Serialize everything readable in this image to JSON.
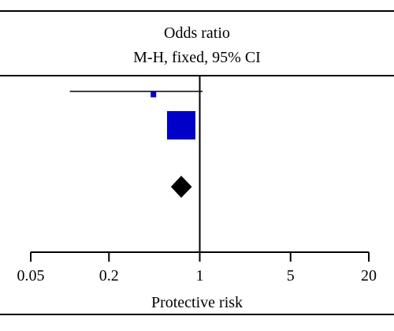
{
  "chart_data": {
    "type": "forest",
    "header": {
      "line1": "Odds ratio",
      "line2": "M-H, fixed, 95% CI"
    },
    "xlabel": "Protective risk",
    "x_scale": "log",
    "xlim": [
      0.05,
      20
    ],
    "x_ticks": [
      0.05,
      0.2,
      1,
      5,
      20
    ],
    "x_tick_labels": [
      "0.05",
      "0.2",
      "1",
      "5",
      "20"
    ],
    "reference_line": 1,
    "studies": [
      {
        "or": 0.44,
        "ci": [
          0.1,
          1.05
        ],
        "weight": "small"
      },
      {
        "or": 0.72,
        "ci": [
          0.62,
          0.92
        ],
        "weight": "large"
      }
    ],
    "pooled": {
      "or": 0.72,
      "ci": [
        0.6,
        0.87
      ]
    },
    "colors": {
      "study_marker": "#0000c8",
      "pooled_marker": "#000000",
      "axis": "#000000"
    }
  }
}
